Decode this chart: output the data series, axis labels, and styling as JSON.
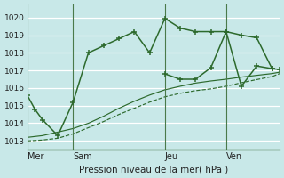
{
  "background_color": "#c8e8e8",
  "plot_bg_color": "#c8e8e8",
  "grid_color": "#ffffff",
  "line_color": "#2d6a2d",
  "vline_color": "#4a7a4a",
  "title_text": "Pression niveau de la mer( hPa )",
  "ylim": [
    1012.5,
    1020.75
  ],
  "yticks": [
    1013,
    1014,
    1015,
    1016,
    1017,
    1018,
    1019,
    1020
  ],
  "day_labels": [
    "Mer",
    "Sam",
    "Jeu",
    "Ven"
  ],
  "day_positions": [
    0,
    3,
    9,
    13
  ],
  "xlim": [
    0,
    16.5
  ],
  "series1_x": [
    0,
    0.5,
    1,
    2,
    3,
    4,
    5,
    6,
    7,
    8,
    9,
    10,
    11,
    12,
    13,
    14,
    15,
    16
  ],
  "series1_y": [
    1015.6,
    1014.8,
    1014.2,
    1013.3,
    1015.2,
    1018.0,
    1018.4,
    1018.8,
    1019.2,
    1018.0,
    1019.95,
    1019.4,
    1019.2,
    1019.2,
    1019.2,
    1019.0,
    1018.85,
    1017.1
  ],
  "series2_x": [
    0,
    1,
    2,
    3,
    4,
    5,
    6,
    7,
    8,
    9,
    10,
    11,
    12,
    13,
    14,
    15,
    16,
    16.5
  ],
  "series2_y": [
    1013.2,
    1013.3,
    1013.5,
    1013.7,
    1014.0,
    1014.4,
    1014.85,
    1015.25,
    1015.6,
    1015.9,
    1016.1,
    1016.28,
    1016.4,
    1016.5,
    1016.62,
    1016.72,
    1016.82,
    1016.9
  ],
  "series3_x": [
    0,
    1,
    2,
    3,
    4,
    5,
    6,
    7,
    8,
    9,
    10,
    11,
    12,
    13,
    14,
    15,
    16,
    16.5
  ],
  "series3_y": [
    1013.0,
    1013.05,
    1013.15,
    1013.4,
    1013.75,
    1014.1,
    1014.5,
    1014.85,
    1015.2,
    1015.5,
    1015.7,
    1015.85,
    1015.95,
    1016.1,
    1016.3,
    1016.48,
    1016.65,
    1016.82
  ],
  "series4_x": [
    9,
    10,
    11,
    12,
    13,
    14,
    15,
    16,
    16.5
  ],
  "series4_y": [
    1016.8,
    1016.5,
    1016.5,
    1017.15,
    1019.2,
    1016.1,
    1017.25,
    1017.1,
    1017.05
  ]
}
